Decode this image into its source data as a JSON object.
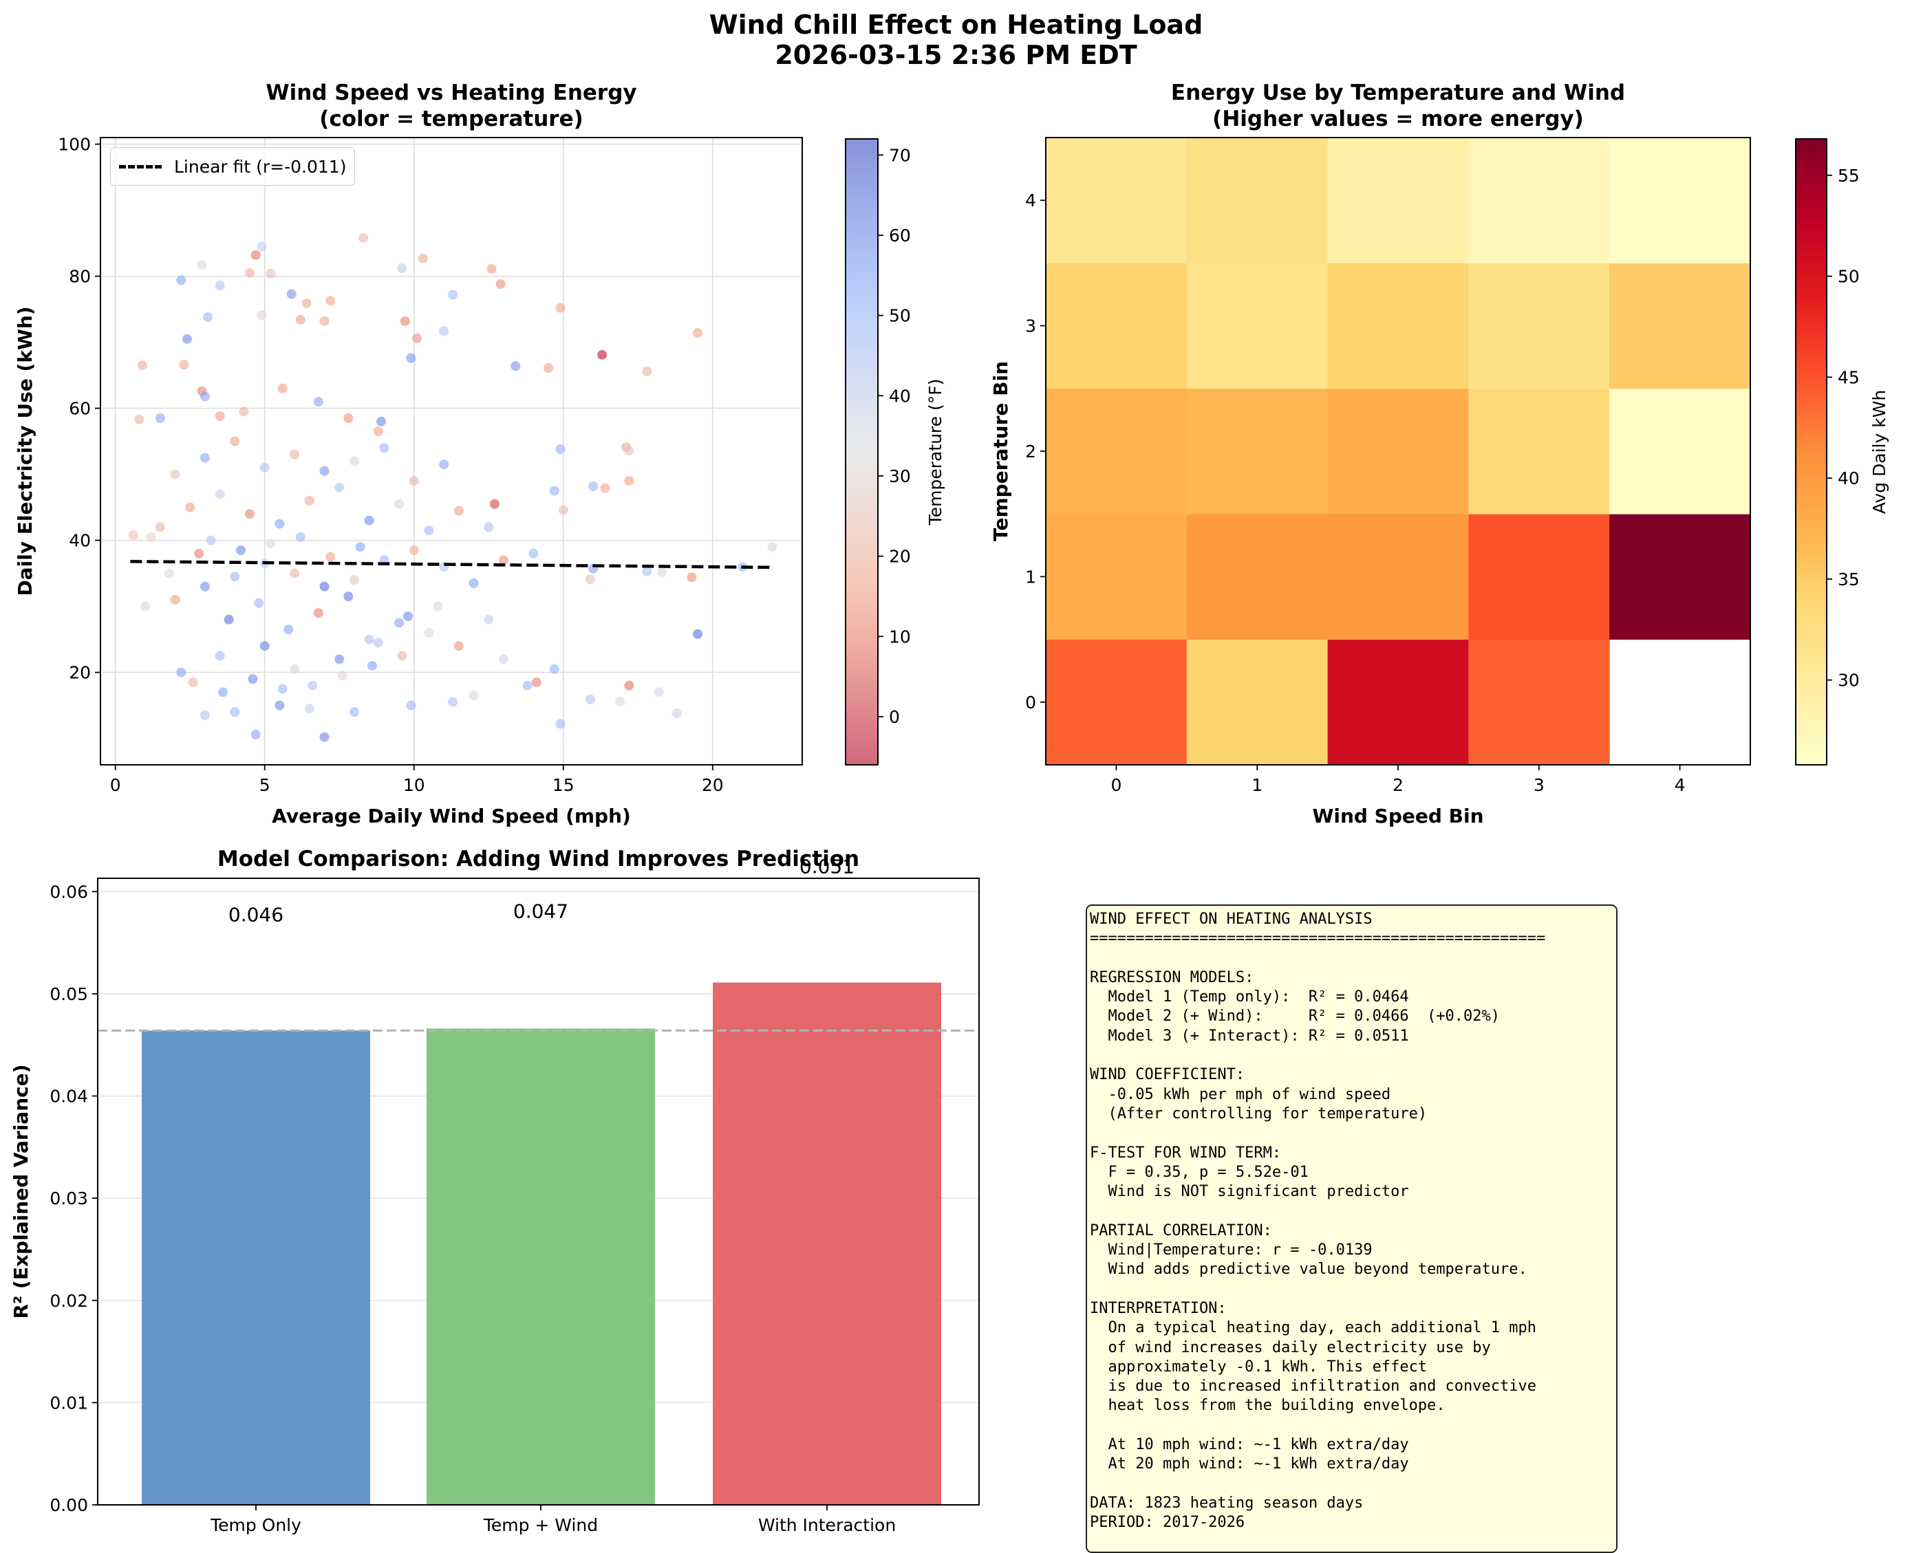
{
  "figure": {
    "suptitle_line1": "Wind Chill Effect on Heating Load",
    "suptitle_line2": "2026-03-15 2:36 PM EDT"
  },
  "chart_data": [
    {
      "id": "scatter",
      "type": "scatter",
      "title_line1": "Wind Speed vs Heating Energy",
      "title_line2": "(color = temperature)",
      "xlabel": "Average Daily Wind Speed (mph)",
      "ylabel": "Daily Electricity Use (kWh)",
      "xlim": [
        -0.5,
        23.0
      ],
      "ylim": [
        6,
        101
      ],
      "xticks": [
        0,
        5,
        10,
        15,
        20
      ],
      "yticks": [
        20,
        40,
        60,
        80,
        100
      ],
      "grid": true,
      "legend": {
        "position": "top-left",
        "label": "Linear fit (r=-0.011)"
      },
      "fit_line": {
        "x": [
          0.5,
          22.0
        ],
        "y": [
          36.8,
          35.9
        ],
        "r": -0.011
      },
      "colorbar": {
        "label": "Temperature (°F)",
        "range": [
          -6,
          72
        ],
        "ticks": [
          0,
          10,
          20,
          30,
          40,
          50,
          60,
          70
        ],
        "colormap": "coolwarm_r"
      },
      "n_points": 1823,
      "points_sample": [
        [
          4.7,
          83.2,
          8
        ],
        [
          8.3,
          85.8,
          22
        ],
        [
          4.9,
          84.5,
          40
        ],
        [
          4.5,
          80.5,
          20
        ],
        [
          2.9,
          81.7,
          35
        ],
        [
          10.3,
          82.7,
          18
        ],
        [
          9.6,
          81.2,
          42
        ],
        [
          12.6,
          81.1,
          14
        ],
        [
          12.9,
          78.8,
          12
        ],
        [
          2.2,
          79.4,
          55
        ],
        [
          3.5,
          78.6,
          45
        ],
        [
          5.2,
          80.4,
          25
        ],
        [
          5.9,
          77.3,
          58
        ],
        [
          11.3,
          77.2,
          48
        ],
        [
          7.2,
          76.3,
          16
        ],
        [
          6.4,
          75.9,
          18
        ],
        [
          4.9,
          74.1,
          30
        ],
        [
          14.9,
          75.2,
          15
        ],
        [
          3.1,
          73.8,
          50
        ],
        [
          6.2,
          73.4,
          15
        ],
        [
          7.0,
          73.2,
          17
        ],
        [
          9.7,
          73.2,
          10
        ],
        [
          11.0,
          71.7,
          45
        ],
        [
          19.5,
          71.4,
          16
        ],
        [
          2.4,
          70.5,
          60
        ],
        [
          10.1,
          70.6,
          12
        ],
        [
          13.4,
          66.4,
          58
        ],
        [
          14.5,
          66.1,
          14
        ],
        [
          16.3,
          68.1,
          -4
        ],
        [
          0.9,
          66.5,
          18
        ],
        [
          2.3,
          66.6,
          18
        ],
        [
          9.9,
          67.6,
          58
        ],
        [
          17.8,
          65.6,
          20
        ],
        [
          2.9,
          62.6,
          10
        ],
        [
          3.0,
          61.8,
          55
        ],
        [
          3.5,
          58.8,
          15
        ],
        [
          7.8,
          58.5,
          12
        ],
        [
          8.9,
          58.0,
          60
        ],
        [
          0.8,
          58.3,
          20
        ],
        [
          1.5,
          58.5,
          55
        ],
        [
          17.1,
          54.1,
          18
        ],
        [
          17.2,
          53.6,
          25
        ],
        [
          14.9,
          53.8,
          52
        ],
        [
          17.2,
          49.0,
          14
        ],
        [
          16.0,
          48.2,
          50
        ],
        [
          16.4,
          47.9,
          16
        ],
        [
          12.7,
          45.5,
          2
        ],
        [
          14.7,
          47.5,
          52
        ],
        [
          15.0,
          44.6,
          22
        ],
        [
          22.0,
          39.0,
          35
        ],
        [
          21.0,
          36.0,
          50
        ],
        [
          19.3,
          34.4,
          12
        ],
        [
          18.3,
          35.2,
          30
        ],
        [
          17.8,
          35.3,
          45
        ],
        [
          16.0,
          35.7,
          55
        ],
        [
          15.9,
          34.1,
          25
        ],
        [
          19.5,
          25.8,
          65
        ],
        [
          17.2,
          18.0,
          8
        ],
        [
          18.8,
          13.8,
          38
        ],
        [
          16.9,
          15.6,
          35
        ],
        [
          14.9,
          12.2,
          50
        ],
        [
          15.9,
          15.9,
          45
        ],
        [
          18.2,
          17.0,
          36
        ],
        [
          4.7,
          10.6,
          55
        ],
        [
          7.0,
          10.2,
          60
        ],
        [
          3.0,
          13.5,
          45
        ],
        [
          4.0,
          14.0,
          50
        ],
        [
          5.5,
          15.0,
          60
        ],
        [
          6.5,
          14.5,
          40
        ],
        [
          8.0,
          14.0,
          50
        ],
        [
          9.9,
          15.0,
          50
        ],
        [
          11.3,
          15.5,
          45
        ],
        [
          12.0,
          16.5,
          30
        ],
        [
          13.8,
          18.0,
          50
        ],
        [
          14.1,
          18.5,
          10
        ],
        [
          14.7,
          20.5,
          52
        ],
        [
          13.0,
          22.0,
          38
        ],
        [
          2.2,
          20.0,
          55
        ],
        [
          3.5,
          22.5,
          48
        ],
        [
          5.0,
          24.0,
          62
        ],
        [
          6.0,
          20.5,
          30
        ],
        [
          7.5,
          22.0,
          60
        ],
        [
          8.5,
          25.0,
          45
        ],
        [
          9.5,
          27.5,
          55
        ],
        [
          10.5,
          26.0,
          35
        ],
        [
          11.5,
          24.0,
          12
        ],
        [
          12.5,
          28.0,
          40
        ],
        [
          1.0,
          30.0,
          30
        ],
        [
          2.0,
          31.0,
          15
        ],
        [
          3.0,
          33.0,
          60
        ],
        [
          4.0,
          34.5,
          50
        ],
        [
          5.0,
          36.5,
          40
        ],
        [
          6.0,
          35.0,
          20
        ],
        [
          7.0,
          33.0,
          65
        ],
        [
          8.0,
          34.0,
          25
        ],
        [
          9.0,
          37.0,
          50
        ],
        [
          10.0,
          38.5,
          18
        ],
        [
          11.0,
          36.0,
          42
        ],
        [
          12.0,
          33.5,
          55
        ],
        [
          13.0,
          37.0,
          12
        ],
        [
          14.0,
          38.0,
          50
        ],
        [
          1.5,
          42.0,
          20
        ],
        [
          2.5,
          45.0,
          15
        ],
        [
          3.5,
          47.0,
          40
        ],
        [
          4.5,
          44.0,
          10
        ],
        [
          5.5,
          42.5,
          55
        ],
        [
          6.5,
          46.0,
          18
        ],
        [
          7.5,
          48.0,
          45
        ],
        [
          8.5,
          43.0,
          60
        ],
        [
          9.5,
          45.5,
          30
        ],
        [
          10.5,
          41.5,
          50
        ],
        [
          11.5,
          44.5,
          15
        ],
        [
          12.5,
          42.0,
          45
        ],
        [
          2.0,
          50.0,
          25
        ],
        [
          3.0,
          52.5,
          55
        ],
        [
          4.0,
          55.0,
          15
        ],
        [
          5.0,
          51.0,
          45
        ],
        [
          6.0,
          53.0,
          20
        ],
        [
          7.0,
          50.5,
          58
        ],
        [
          8.0,
          52.0,
          30
        ],
        [
          9.0,
          54.0,
          50
        ],
        [
          10.0,
          49.0,
          20
        ],
        [
          11.0,
          51.5,
          55
        ],
        [
          4.3,
          59.5,
          20
        ],
        [
          5.6,
          63.0,
          15
        ],
        [
          6.8,
          61.0,
          55
        ],
        [
          8.8,
          56.5,
          15
        ],
        [
          1.8,
          35.0,
          35
        ],
        [
          2.8,
          38.0,
          10
        ],
        [
          3.8,
          28.0,
          65
        ],
        [
          4.8,
          30.5,
          50
        ],
        [
          5.8,
          26.5,
          55
        ],
        [
          6.8,
          29.0,
          10
        ],
        [
          7.8,
          31.5,
          62
        ],
        [
          8.8,
          24.5,
          45
        ],
        [
          9.8,
          28.5,
          60
        ],
        [
          10.8,
          30.0,
          30
        ],
        [
          2.6,
          18.5,
          20
        ],
        [
          3.6,
          17.0,
          55
        ],
        [
          4.6,
          19.0,
          60
        ],
        [
          5.6,
          17.5,
          50
        ],
        [
          6.6,
          18.0,
          45
        ],
        [
          7.6,
          19.5,
          30
        ],
        [
          8.6,
          21.0,
          55
        ],
        [
          9.6,
          22.5,
          20
        ],
        [
          1.2,
          40.5,
          30
        ],
        [
          0.6,
          40.8,
          25
        ],
        [
          3.2,
          40.0,
          45
        ],
        [
          4.2,
          38.5,
          60
        ],
        [
          5.2,
          39.5,
          35
        ],
        [
          6.2,
          40.5,
          50
        ],
        [
          7.2,
          37.5,
          15
        ],
        [
          8.2,
          39.0,
          55
        ]
      ],
      "points_sample_columns": [
        "wind_mph",
        "kwh",
        "temp_f"
      ]
    },
    {
      "id": "heatmap",
      "type": "heatmap",
      "title_line1": "Energy Use by Temperature and Wind",
      "title_line2": "(Higher values = more energy)",
      "xlabel": "Wind Speed Bin",
      "ylabel": "Temperature Bin",
      "x_categories": [
        "0",
        "1",
        "2",
        "3",
        "4"
      ],
      "y_categories": [
        "0",
        "1",
        "2",
        "3",
        "4"
      ],
      "values_by_temp_bin": [
        [
          44.0,
          34.0,
          51.0,
          44.0,
          null
        ],
        [
          38.0,
          40.0,
          40.0,
          45.0,
          56.8
        ],
        [
          37.5,
          37.0,
          38.0,
          33.5,
          26.5
        ],
        [
          34.0,
          31.5,
          34.0,
          32.0,
          35.0
        ],
        [
          31.0,
          32.0,
          29.0,
          27.5,
          26.3
        ]
      ],
      "colorbar": {
        "label": "Avg Daily kWh",
        "range": [
          25.8,
          56.8
        ],
        "ticks": [
          30,
          35,
          40,
          45,
          50,
          55
        ],
        "colormap": "YlOrRd"
      }
    },
    {
      "id": "bars",
      "type": "bar",
      "title": "Model Comparison: Adding Wind Improves Prediction",
      "xlabel": "",
      "ylabel": "R² (Explained Variance)",
      "categories": [
        "Temp Only",
        "Temp + Wind",
        "With Interaction"
      ],
      "values": [
        0.0464,
        0.0466,
        0.0511
      ],
      "data_labels": [
        "0.046",
        "0.047",
        "0.051"
      ],
      "colors": [
        "#6495c6",
        "#84c680",
        "#e2686a"
      ],
      "reference_line": 0.0464,
      "ylim": [
        0,
        0.0613
      ],
      "yticks": [
        0.0,
        0.01,
        0.02,
        0.03,
        0.04,
        0.05,
        0.06
      ],
      "ytick_labels": [
        "0.00",
        "0.01",
        "0.02",
        "0.03",
        "0.04",
        "0.05",
        "0.06"
      ],
      "grid": true
    }
  ],
  "summary_box": {
    "lines": [
      "WIND EFFECT ON HEATING ANALYSIS",
      "==================================================",
      "",
      "REGRESSION MODELS:",
      "  Model 1 (Temp only):  R² = 0.0464",
      "  Model 2 (+ Wind):     R² = 0.0466  (+0.02%)",
      "  Model 3 (+ Interact): R² = 0.0511",
      "",
      "WIND COEFFICIENT:",
      "  -0.05 kWh per mph of wind speed",
      "  (After controlling for temperature)",
      "",
      "F-TEST FOR WIND TERM:",
      "  F = 0.35, p = 5.52e-01",
      "  Wind is NOT significant predictor",
      "",
      "PARTIAL CORRELATION:",
      "  Wind|Temperature: r = -0.0139",
      "  Wind adds predictive value beyond temperature.",
      "",
      "INTERPRETATION:",
      "  On a typical heating day, each additional 1 mph",
      "  of wind increases daily electricity use by",
      "  approximately -0.1 kWh. This effect",
      "  is due to increased infiltration and convective",
      "  heat loss from the building envelope.",
      "",
      "  At 10 mph wind: ~-1 kWh extra/day",
      "  At 20 mph wind: ~-1 kWh extra/day",
      "",
      "DATA: 1823 heating season days",
      "PERIOD: 2017-2026"
    ]
  }
}
